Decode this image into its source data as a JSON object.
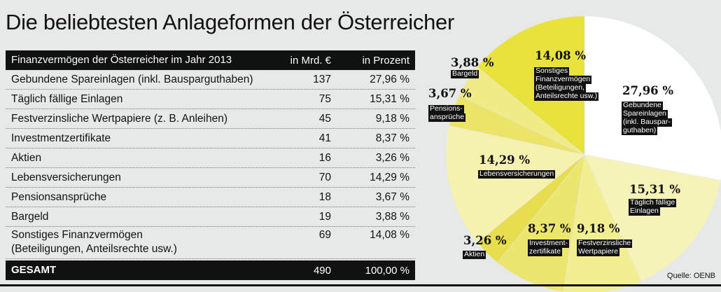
{
  "title": "Die beliebtesten Anlageformen der Österreicher",
  "table": {
    "header": {
      "label": "Finanzvermögen der Österreicher im Jahr 2013",
      "col_amount": "in Mrd. €",
      "col_percent": "in Prozent"
    },
    "rows": [
      {
        "label": "Gebundene Spareinlagen (inkl. Bausparguthaben)",
        "amount": "137",
        "percent": "27,96 %"
      },
      {
        "label": "Täglich fällige Einlagen",
        "amount": "75",
        "percent": "15,31 %"
      },
      {
        "label": "Festverzinsliche Wertpapiere (z. B. Anleihen)",
        "amount": "45",
        "percent": "9,18 %"
      },
      {
        "label": "Investmentzertifikate",
        "amount": "41",
        "percent": "8,37 %"
      },
      {
        "label": "Aktien",
        "amount": "16",
        "percent": "3,26 %"
      },
      {
        "label": "Lebensversicherungen",
        "amount": "70",
        "percent": "14,29 %"
      },
      {
        "label": "Pensionsansprüche",
        "amount": "18",
        "percent": "3,67 %"
      },
      {
        "label": "Bargeld",
        "amount": "19",
        "percent": "3,88 %"
      },
      {
        "label_line1": "Sonstiges Finanzvermögen",
        "label_line2": "(Beteiligungen, Anteilsrechte usw.)",
        "amount": "69",
        "percent": "14,08 %"
      }
    ],
    "total": {
      "label": "GESAMT",
      "amount": "490",
      "percent": "100,00 %"
    }
  },
  "chart_data": {
    "type": "pie",
    "title": "",
    "slices": [
      {
        "label": "Gebundene Spareinlagen (inkl. Bauspar-guthaben)",
        "value": 27.96,
        "pct_text": "27,96 %",
        "color": "#ffffff"
      },
      {
        "label": "Täglich fällige Einlagen",
        "value": 15.31,
        "pct_text": "15,31 %",
        "color": "#f6f3b8"
      },
      {
        "label": "Festverzinsliche Wertpapiere",
        "value": 9.18,
        "pct_text": "9,18 %",
        "color": "#f2ee92"
      },
      {
        "label": "Investment-zertifikate",
        "value": 8.37,
        "pct_text": "8,37 %",
        "color": "#ece66e"
      },
      {
        "label": "Aktien",
        "value": 3.26,
        "pct_text": "3,26 %",
        "color": "#e6de4e"
      },
      {
        "label": "Lebensversicherungen",
        "value": 14.29,
        "pct_text": "14,29 %",
        "color": "#f5f2b0"
      },
      {
        "label": "Pensions-ansprüche",
        "value": 3.67,
        "pct_text": "3,67 %",
        "color": "#ebe468"
      },
      {
        "label": "Bargeld",
        "value": 3.88,
        "pct_text": "3,88 %",
        "color": "#f0eb86"
      },
      {
        "label": "Sonstiges Finanzvermögen (Beteiligungen, Anteilsrechte usw.)",
        "value": 14.08,
        "pct_text": "14,08 %",
        "color": "#e8e23c"
      }
    ],
    "labels": {
      "gebundene": [
        "Gebundene",
        "Spareinlagen",
        "(inkl. Bauspar-",
        "guthaben)"
      ],
      "taeglich": [
        "Täglich fällige",
        "Einlagen"
      ],
      "festverz": [
        "Festverzinsliche",
        "Wertpapiere"
      ],
      "invest": [
        "Investment-",
        "zertifikate"
      ],
      "aktien": [
        "Aktien"
      ],
      "leben": [
        "Lebensversicherungen"
      ],
      "pension": [
        "Pensions-",
        "ansprüche"
      ],
      "bargeld": [
        "Bargeld"
      ],
      "sonstiges": [
        "Sonstiges",
        "Finanzvermögen",
        "(Beteiligungen,",
        "Anteilsrechte usw.)"
      ]
    }
  },
  "source": "Quelle: OENB"
}
